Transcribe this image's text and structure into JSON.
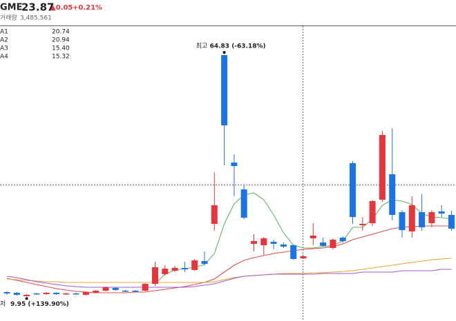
{
  "header": {
    "symbol": "GME",
    "price": 23.87,
    "change": "▲0.05",
    "change_pct": "+0.21%",
    "volume_label": "거래량",
    "volume": "3,485,561"
  },
  "chart_data": {
    "type": "candlestick",
    "ylim": [
      5,
      71.25
    ],
    "up_color": "#e8343a",
    "down_color": "#1a73e8",
    "open": [
      10.94,
      10.78,
      10.0,
      10.63,
      10.47,
      10.78,
      10.47,
      10.63,
      10.31,
      10.78,
      11.25,
      11.88,
      11.25,
      11.25,
      11.25,
      12.81,
      15.0,
      15.78,
      16.41,
      15.94,
      17.97,
      26.41,
      64.69,
      40.31,
      34.22,
      21.88,
      21.56,
      22.34,
      21.72,
      21.56,
      18.59,
      23.13,
      22.19,
      20.94,
      23.28,
      40.16,
      26.09,
      26.56,
      31.88,
      37.66,
      29.06,
      24.69,
      29.06,
      26.56,
      29.22,
      28.44
    ],
    "high": [
      11.09,
      10.94,
      10.47,
      10.78,
      10.94,
      10.94,
      10.78,
      10.78,
      11.09,
      11.41,
      12.19,
      12.03,
      11.41,
      11.41,
      12.97,
      17.81,
      17.03,
      16.88,
      17.81,
      18.44,
      20.16,
      38.13,
      64.83,
      42.19,
      35.31,
      24.06,
      23.44,
      22.81,
      22.19,
      21.72,
      19.22,
      26.56,
      23.28,
      23.13,
      23.59,
      40.63,
      27.97,
      31.88,
      47.5,
      48.13,
      29.53,
      32.66,
      33.13,
      29.53,
      30.63,
      29.38
    ],
    "low": [
      10.31,
      10.16,
      9.95,
      10.31,
      10.31,
      10.31,
      10.31,
      10.31,
      10.16,
      10.63,
      11.09,
      11.25,
      10.94,
      10.94,
      11.09,
      12.34,
      14.69,
      15.47,
      15.47,
      15.78,
      17.03,
      24.84,
      39.69,
      32.66,
      27.5,
      20.16,
      19.38,
      20.63,
      20.94,
      18.28,
      18.44,
      21.56,
      21.25,
      20.63,
      22.19,
      26.41,
      24.84,
      25.94,
      31.41,
      27.19,
      23.28,
      23.28,
      24.84,
      25.63,
      27.97,
      24.84
    ],
    "close": [
      10.63,
      10.31,
      10.31,
      10.47,
      10.78,
      10.47,
      10.63,
      10.47,
      10.94,
      11.25,
      12.03,
      11.41,
      11.09,
      11.09,
      12.81,
      16.56,
      16.25,
      16.41,
      16.09,
      18.13,
      17.34,
      30.63,
      48.75,
      39.53,
      27.81,
      22.5,
      23.13,
      21.88,
      21.25,
      18.44,
      19.06,
      23.75,
      21.41,
      22.81,
      22.5,
      27.97,
      26.41,
      31.56,
      46.56,
      28.44,
      25.0,
      30.63,
      25.63,
      29.06,
      28.75,
      25.31
    ],
    "series": [
      {
        "name": "A1",
        "color": "#5cb85c",
        "legend_value": 20.74,
        "values": [
          null,
          null,
          null,
          null,
          null,
          null,
          null,
          null,
          null,
          null,
          null,
          null,
          null,
          null,
          null,
          12.81,
          15.0,
          15.94,
          16.25,
          16.56,
          17.19,
          19.69,
          26.41,
          30.94,
          32.97,
          33.44,
          31.88,
          28.44,
          24.38,
          21.56,
          20.94,
          20.94,
          21.25,
          21.56,
          22.5,
          25.63,
          25.63,
          27.5,
          30.63,
          31.88,
          31.56,
          30.78,
          28.75,
          27.97,
          27.81,
          27.5
        ]
      },
      {
        "name": "A2",
        "color": "#e84a4a",
        "legend_value": 20.94,
        "values": [
          14.06,
          13.59,
          13.13,
          12.66,
          12.19,
          11.72,
          11.41,
          11.09,
          10.94,
          10.78,
          10.78,
          10.78,
          10.78,
          10.94,
          10.94,
          11.25,
          11.56,
          11.88,
          12.19,
          12.66,
          13.13,
          13.91,
          15.47,
          17.03,
          18.13,
          18.75,
          19.22,
          19.69,
          20.0,
          20.31,
          20.63,
          20.78,
          20.94,
          21.25,
          21.88,
          22.81,
          23.44,
          24.06,
          24.69,
          25.31,
          25.63,
          25.78,
          25.94,
          25.94,
          25.94,
          25.94
        ]
      },
      {
        "name": "A3",
        "color": "#f0a030",
        "legend_value": {
          "value": 15.4,
          "label": "15.40"
        },
        "values": [
          13.91,
          13.75,
          13.59,
          13.44,
          13.28,
          13.28,
          13.13,
          13.13,
          13.13,
          13.13,
          13.13,
          13.13,
          13.13,
          13.13,
          13.13,
          13.13,
          13.13,
          13.13,
          13.13,
          13.13,
          13.13,
          13.28,
          13.75,
          14.22,
          14.53,
          14.69,
          14.84,
          15.0,
          15.16,
          15.16,
          15.16,
          15.31,
          15.31,
          15.47,
          15.63,
          15.78,
          16.09,
          16.41,
          16.72,
          17.03,
          17.34,
          17.66,
          17.97,
          18.28,
          18.44,
          18.59
        ]
      },
      {
        "name": "A4",
        "color": "#9b59d6",
        "legend_value": 15.32,
        "values": [
          14.53,
          14.22,
          13.75,
          13.28,
          12.97,
          12.66,
          12.34,
          12.19,
          12.03,
          12.03,
          12.03,
          12.03,
          12.03,
          12.03,
          12.03,
          12.03,
          12.03,
          12.03,
          12.03,
          12.19,
          12.5,
          12.81,
          13.44,
          14.06,
          14.53,
          14.69,
          14.84,
          15.0,
          15.0,
          15.0,
          15.0,
          15.0,
          15.16,
          15.16,
          15.16,
          15.16,
          15.47,
          15.47,
          15.47,
          15.47,
          15.78,
          15.78,
          15.78,
          15.78,
          16.09,
          16.09
        ]
      }
    ],
    "annotations": [
      {
        "label": "최고",
        "value_label": "64.83 (-63.18%)",
        "index": 22,
        "value": 64.83
      },
      {
        "label": "저",
        "value_label": "9.95 (+139.90%)",
        "index": 2,
        "value": 9.95
      }
    ]
  }
}
